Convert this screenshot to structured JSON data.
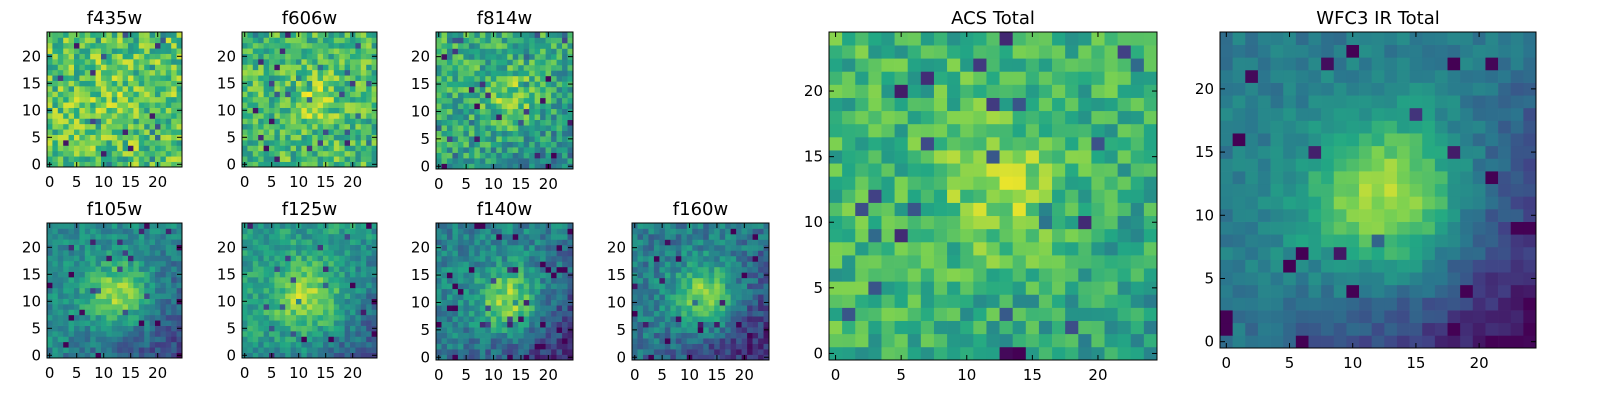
{
  "figure": {
    "description_colormap": "viridis",
    "colormap_stops": [
      "#440154",
      "#414487",
      "#2a788e",
      "#22a884",
      "#7ad151",
      "#fde725"
    ]
  },
  "chart_data": [
    {
      "type": "heatmap",
      "title": "f435w",
      "grid_size": 25,
      "xticks": [
        0,
        5,
        10,
        15,
        20
      ],
      "yticks": [
        0,
        5,
        10,
        15,
        20
      ],
      "xlim": [
        0,
        24
      ],
      "ylim": [
        0,
        24
      ],
      "seed": 11,
      "blob_center": [
        12,
        12
      ],
      "blob_sigma": 4,
      "blob_amp": 0.05,
      "noise": 0.22,
      "base": 0.72,
      "corner_dark": 0.0
    },
    {
      "type": "heatmap",
      "title": "f606w",
      "grid_size": 25,
      "xticks": [
        0,
        5,
        10,
        15,
        20
      ],
      "yticks": [
        0,
        5,
        10,
        15,
        20
      ],
      "xlim": [
        0,
        24
      ],
      "ylim": [
        0,
        24
      ],
      "seed": 23,
      "blob_center": [
        13,
        12
      ],
      "blob_sigma": 3.5,
      "blob_amp": 0.15,
      "noise": 0.2,
      "base": 0.68,
      "corner_dark": 0.0
    },
    {
      "type": "heatmap",
      "title": "f814w",
      "grid_size": 25,
      "xticks": [
        0,
        5,
        10,
        15,
        20
      ],
      "yticks": [
        0,
        5,
        10,
        15,
        20
      ],
      "xlim": [
        0,
        24
      ],
      "ylim": [
        0,
        24
      ],
      "seed": 37,
      "blob_center": [
        14,
        12
      ],
      "blob_sigma": 3.5,
      "blob_amp": 0.2,
      "noise": 0.2,
      "base": 0.62,
      "corner_dark": 0.15
    },
    {
      "type": "heatmap",
      "title": "f105w",
      "grid_size": 25,
      "xticks": [
        0,
        5,
        10,
        15,
        20
      ],
      "yticks": [
        0,
        5,
        10,
        15,
        20
      ],
      "xlim": [
        0,
        24
      ],
      "ylim": [
        0,
        24
      ],
      "seed": 41,
      "blob_center": [
        13,
        11
      ],
      "blob_sigma": 4,
      "blob_amp": 0.4,
      "noise": 0.12,
      "base": 0.48,
      "corner_dark": 0.25
    },
    {
      "type": "heatmap",
      "title": "f125w",
      "grid_size": 25,
      "xticks": [
        0,
        5,
        10,
        15,
        20
      ],
      "yticks": [
        0,
        5,
        10,
        15,
        20
      ],
      "xlim": [
        0,
        24
      ],
      "ylim": [
        0,
        24
      ],
      "seed": 53,
      "blob_center": [
        12,
        10
      ],
      "blob_sigma": 4.5,
      "blob_amp": 0.35,
      "noise": 0.13,
      "base": 0.55,
      "corner_dark": 0.25
    },
    {
      "type": "heatmap",
      "title": "f140w",
      "grid_size": 25,
      "xticks": [
        0,
        5,
        10,
        15,
        20
      ],
      "yticks": [
        0,
        5,
        10,
        15,
        20
      ],
      "xlim": [
        0,
        24
      ],
      "ylim": [
        0,
        24
      ],
      "seed": 67,
      "blob_center": [
        13,
        10
      ],
      "blob_sigma": 4,
      "blob_amp": 0.45,
      "noise": 0.14,
      "base": 0.45,
      "corner_dark": 0.3
    },
    {
      "type": "heatmap",
      "title": "f160w",
      "grid_size": 25,
      "xticks": [
        0,
        5,
        10,
        15,
        20
      ],
      "yticks": [
        0,
        5,
        10,
        15,
        20
      ],
      "xlim": [
        0,
        24
      ],
      "ylim": [
        0,
        24
      ],
      "seed": 79,
      "blob_center": [
        13,
        11
      ],
      "blob_sigma": 4,
      "blob_amp": 0.45,
      "noise": 0.14,
      "base": 0.42,
      "corner_dark": 0.3
    },
    {
      "type": "heatmap",
      "title": "ACS Total",
      "grid_size": 25,
      "xticks": [
        0,
        5,
        10,
        15,
        20
      ],
      "yticks": [
        0,
        5,
        10,
        15,
        20
      ],
      "xlim": [
        0,
        24
      ],
      "ylim": [
        0,
        24
      ],
      "seed": 97,
      "blob_center": [
        13,
        12
      ],
      "blob_sigma": 3.5,
      "blob_amp": 0.2,
      "noise": 0.16,
      "base": 0.66,
      "corner_dark": 0.1
    },
    {
      "type": "heatmap",
      "title": "WFC3 IR Total",
      "grid_size": 25,
      "xticks": [
        0,
        5,
        10,
        15,
        20
      ],
      "yticks": [
        0,
        5,
        10,
        15,
        20
      ],
      "xlim": [
        0,
        24
      ],
      "ylim": [
        0,
        24
      ],
      "seed": 101,
      "blob_center": [
        13,
        11
      ],
      "blob_sigma": 4.5,
      "blob_amp": 0.5,
      "noise": 0.07,
      "base": 0.42,
      "corner_dark": 0.35
    }
  ]
}
